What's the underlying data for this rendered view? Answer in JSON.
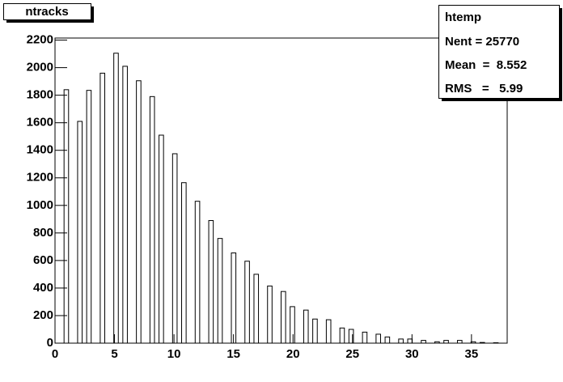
{
  "chart_data": {
    "type": "histogram",
    "title": "ntracks",
    "stats": {
      "name": "htemp",
      "lines": [
        "Nent = 25770",
        "Mean  =  8.552",
        "RMS   =   5.99"
      ]
    },
    "color": "#000000",
    "bins": [
      0,
      0.38,
      0.76,
      1.14,
      1.52,
      1.9,
      2.28,
      2.66,
      3.04,
      3.42,
      3.8,
      4.18,
      4.56,
      4.94,
      5.32,
      5.7,
      6.08,
      6.46,
      6.84,
      7.22,
      7.6,
      7.98,
      8.36,
      8.74,
      9.12,
      9.5,
      9.88,
      10.26,
      10.64,
      11.02,
      11.4,
      11.78,
      12.16,
      12.54,
      12.92,
      13.3,
      13.68,
      14.06,
      14.44,
      14.82,
      15.2,
      15.58,
      15.96,
      16.34,
      16.72,
      17.1,
      17.48,
      17.86,
      18.24,
      18.62,
      19,
      19.38,
      19.76,
      20.14,
      20.52,
      20.9,
      21.28,
      21.66,
      22.04,
      22.42,
      22.8,
      23.18,
      23.56,
      23.94,
      24.32,
      24.7,
      25.08,
      25.46,
      25.84,
      26.22,
      26.6,
      26.98,
      27.36,
      27.74,
      28.12,
      28.5,
      28.88,
      29.26,
      29.64,
      30.02,
      30.4,
      30.78,
      31.16,
      31.54,
      31.92,
      32.3,
      32.68,
      33.06,
      33.44,
      33.82,
      34.2,
      34.58,
      34.96,
      35.34,
      35.72,
      36.1,
      36.48,
      36.86,
      37.24,
      37.62,
      38
    ],
    "values": [
      0,
      0,
      1840,
      0,
      0,
      1610,
      0,
      1835,
      0,
      0,
      1960,
      0,
      0,
      2105,
      0,
      2010,
      0,
      0,
      1905,
      0,
      0,
      1790,
      0,
      1510,
      0,
      0,
      1375,
      0,
      1165,
      0,
      0,
      1030,
      0,
      0,
      890,
      0,
      760,
      0,
      0,
      655,
      0,
      0,
      595,
      0,
      500,
      0,
      0,
      415,
      0,
      0,
      375,
      0,
      265,
      0,
      0,
      240,
      0,
      175,
      0,
      0,
      170,
      0,
      0,
      110,
      0,
      100,
      0,
      0,
      80,
      0,
      0,
      65,
      0,
      45,
      0,
      0,
      30,
      0,
      30,
      0,
      0,
      20,
      0,
      0,
      10,
      0,
      20,
      0,
      0,
      20,
      0,
      0,
      10,
      0,
      5,
      0,
      0,
      3,
      0,
      0
    ],
    "xlim": [
      0,
      38
    ],
    "xticks": [
      0,
      5,
      10,
      15,
      20,
      25,
      30,
      35
    ],
    "ylim": [
      0,
      2215
    ],
    "yticks": [
      0,
      200,
      400,
      600,
      800,
      1000,
      1200,
      1400,
      1600,
      1800,
      2000,
      2200
    ]
  }
}
